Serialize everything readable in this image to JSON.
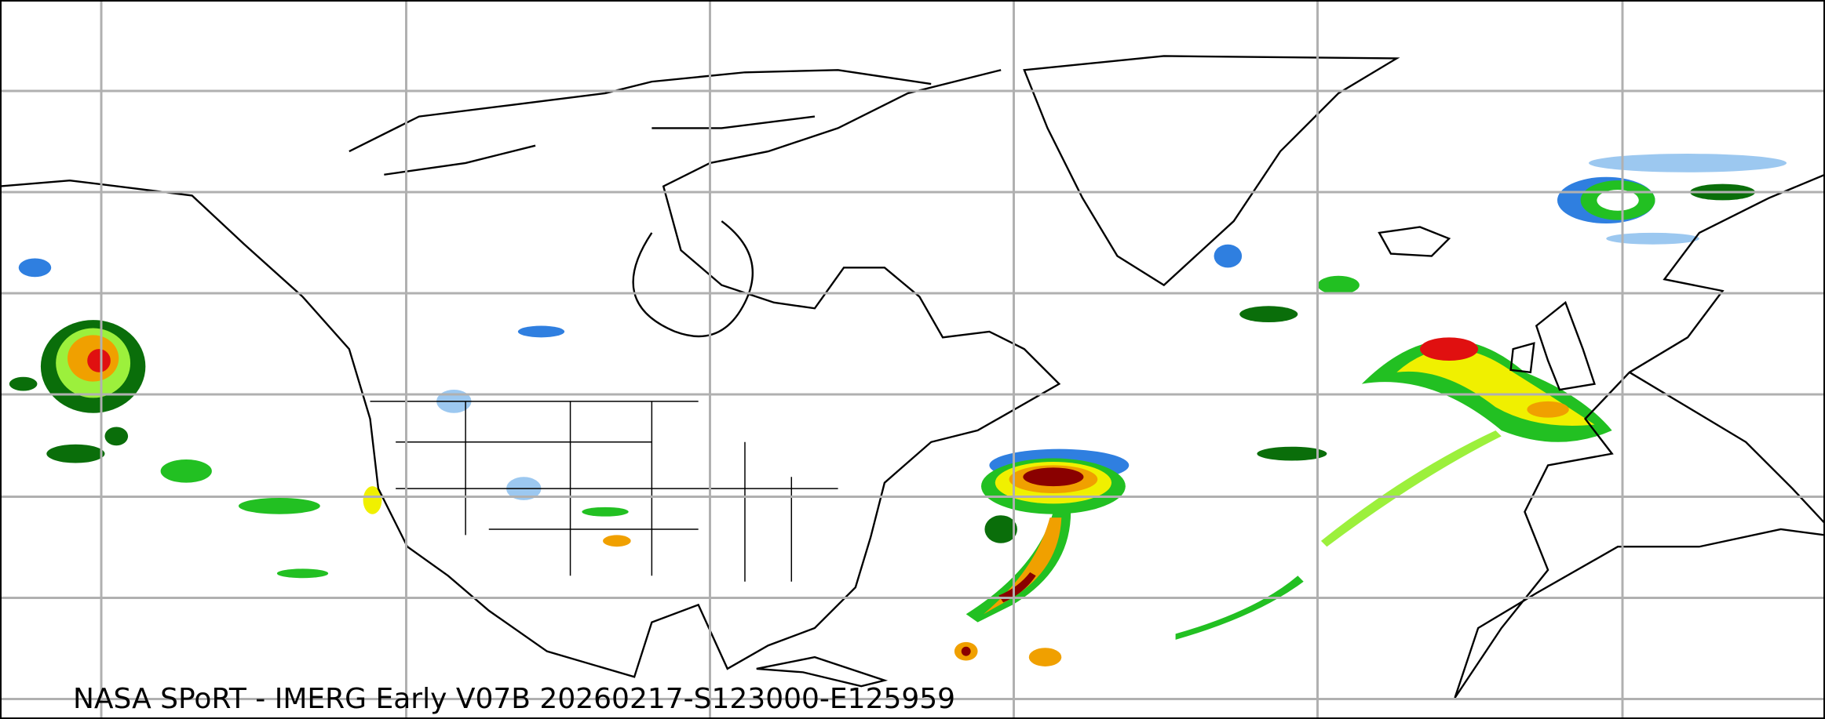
{
  "map": {
    "caption": "NASA SPoRT - IMERG Early V07B 20260217-S123000-E125959",
    "projection": "plate-carree",
    "gridlines": true,
    "colors": {
      "gridline": "#b0b0b0",
      "coastline": "#000000",
      "precip_light_blue": "#9cc8f0",
      "precip_blue": "#2f7fe0",
      "precip_dark_green": "#0a6e0a",
      "precip_green": "#22c022",
      "precip_light_green": "#9cf03c",
      "precip_yellow": "#f0f000",
      "precip_orange": "#f0a000",
      "precip_red": "#e01010",
      "precip_dark_red": "#8a0000"
    }
  }
}
